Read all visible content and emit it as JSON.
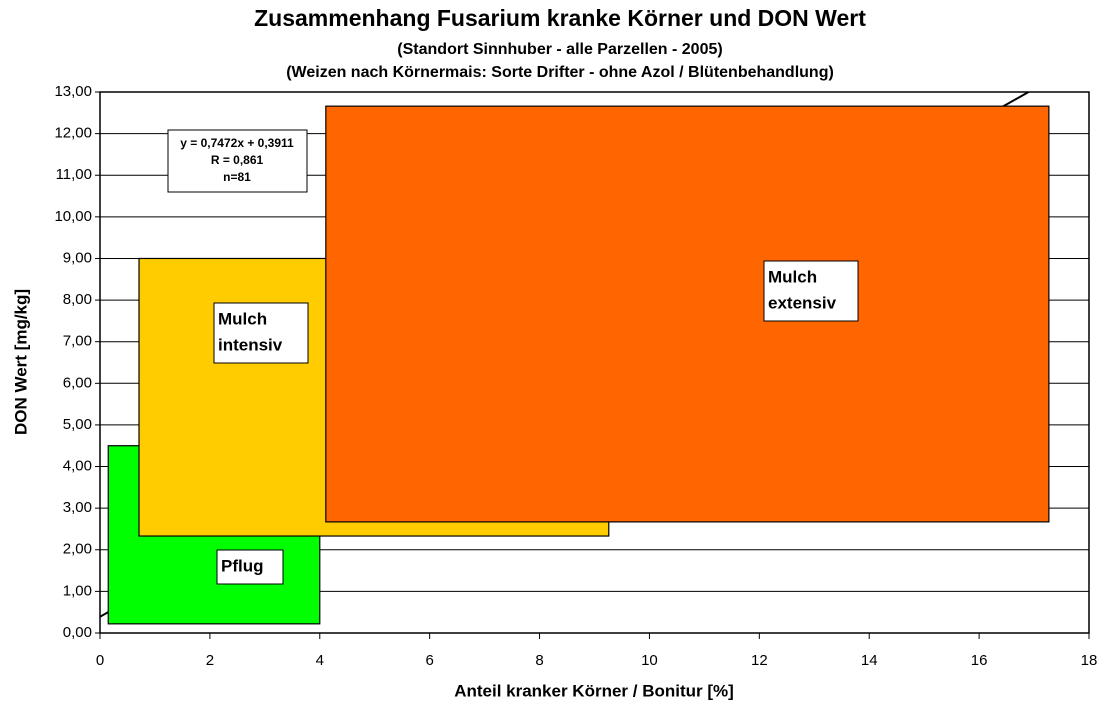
{
  "chart_data": {
    "type": "rect",
    "title": "Zusammenhang Fusarium kranke Körner und DON Wert",
    "subtitles": [
      "(Standort Sinnhuber - alle Parzellen - 2005)",
      "(Weizen nach Körnermais: Sorte Drifter - ohne Azol / Blütenbehandlung)"
    ],
    "x_label": "Anteil kranker Körner / Bonitur [%]",
    "y_label": "DON Wert [mg/kg]",
    "xlim": [
      0,
      18
    ],
    "xticks": [
      0,
      2,
      4,
      6,
      8,
      10,
      12,
      14,
      16,
      18
    ],
    "ylim": [
      0,
      13
    ],
    "yticks": [
      {
        "value": 0,
        "label": "0,00"
      },
      {
        "value": 1,
        "label": "1,00"
      },
      {
        "value": 2,
        "label": "2,00"
      },
      {
        "value": 3,
        "label": "3,00"
      },
      {
        "value": 4,
        "label": "4,00"
      },
      {
        "value": 5,
        "label": "5,00"
      },
      {
        "value": 6,
        "label": "6,00"
      },
      {
        "value": 7,
        "label": "7,00"
      },
      {
        "value": 8,
        "label": "8,00"
      },
      {
        "value": 9,
        "label": "9,00"
      },
      {
        "value": 10,
        "label": "10,00"
      },
      {
        "value": 11,
        "label": "11,00"
      },
      {
        "value": 12,
        "label": "12,00"
      },
      {
        "value": 13,
        "label": "13,00"
      }
    ],
    "grid": true,
    "trendline": {
      "x": [
        0,
        16.9
      ],
      "y": [
        0.39,
        13
      ]
    },
    "annotation": [
      "y = 0,7472x + 0,3911",
      "R = 0,861",
      "n=81"
    ],
    "regions": [
      {
        "name": [
          "Pflug"
        ],
        "color": "#00ff00",
        "x": [
          0.15,
          4.0
        ],
        "y": [
          0.22,
          4.5
        ]
      },
      {
        "name": [
          "Mulch",
          "intensiv"
        ],
        "color": "#ffcc00",
        "x": [
          0.71,
          9.26
        ],
        "y": [
          2.33,
          9.0
        ]
      },
      {
        "name": [
          "Mulch",
          "extensiv"
        ],
        "color": "#ff6600",
        "x": [
          4.11,
          17.27
        ],
        "y": [
          2.67,
          12.66
        ]
      }
    ]
  }
}
